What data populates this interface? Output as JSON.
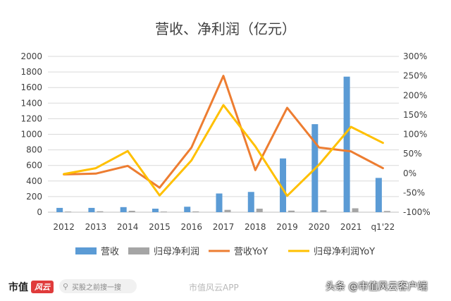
{
  "chart_data": {
    "type": "bar",
    "title": "营收、净利润（亿元）",
    "categories": [
      "2012",
      "2013",
      "2014",
      "2015",
      "2016",
      "2017",
      "2018",
      "2019",
      "2020",
      "2021",
      "q1'22"
    ],
    "ylim": [
      0,
      2000
    ],
    "yticks": [
      "0",
      "200",
      "400",
      "600",
      "800",
      "1000",
      "1200",
      "1400",
      "1600",
      "1800",
      "2000"
    ],
    "y2lim": [
      -100,
      300
    ],
    "y2ticks": [
      "-100%",
      "-50%",
      "0%",
      "50%",
      "100%",
      "150%",
      "200%",
      "250%",
      "300%"
    ],
    "grid": true,
    "legend_position": "bottom",
    "series": [
      {
        "name": "营收",
        "kind": "bar",
        "axis": "left",
        "color": "#5b9bd5",
        "values": [
          55,
          55,
          65,
          45,
          70,
          240,
          260,
          690,
          1130,
          1740,
          440
        ]
      },
      {
        "name": "归母净利润",
        "kind": "bar",
        "axis": "left",
        "color": "#a5a5a5",
        "values": [
          8,
          12,
          18,
          8,
          10,
          30,
          45,
          20,
          25,
          50,
          15
        ]
      },
      {
        "name": "营收YoY",
        "kind": "line",
        "axis": "right",
        "color": "#ed7d31",
        "values": [
          -3,
          -1,
          19,
          -37,
          66,
          250,
          8,
          168,
          66,
          56,
          13
        ]
      },
      {
        "name": "归母净利润YoY",
        "kind": "line",
        "axis": "right",
        "color": "#ffc000",
        "values": [
          -2,
          13,
          57,
          -57,
          33,
          175,
          69,
          -58,
          22,
          119,
          78
        ]
      }
    ]
  },
  "footer": {
    "brand": "市值",
    "brand_seal": "风云",
    "search_placeholder": "买股之前搜一搜",
    "watermark_center": "市值风云APP",
    "watermark_right": "头条 @市值风云客户端"
  }
}
